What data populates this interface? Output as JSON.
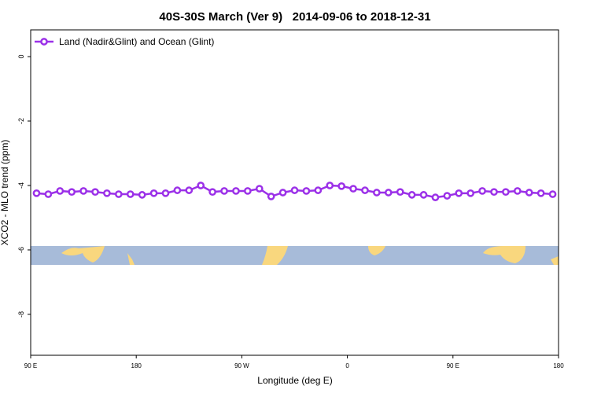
{
  "chart_data": {
    "type": "line",
    "title": "40S-30S March (Ver 9)   2014-09-06 to 2018-12-31",
    "x_label": "Longitude (deg E)",
    "y_label": "XCO2 - MLO trend (ppm)",
    "xlim": [
      90,
      540
    ],
    "ylim": [
      -9.27,
      0.83
    ],
    "xticks": [
      {
        "value": 90,
        "label": "90 E"
      },
      {
        "value": 180,
        "label": "180"
      },
      {
        "value": 270,
        "label": "90 W"
      },
      {
        "value": 360,
        "label": "0"
      },
      {
        "value": 450,
        "label": "90 E"
      },
      {
        "value": 540,
        "label": "180"
      }
    ],
    "yticks": [
      0,
      -2,
      -4,
      -6,
      -8
    ],
    "legend": "top-left",
    "x": [
      95,
      105,
      115,
      125,
      135,
      145,
      155,
      165,
      175,
      185,
      195,
      205,
      215,
      225,
      235,
      245,
      255,
      265,
      275,
      285,
      295,
      305,
      315,
      325,
      335,
      345,
      355,
      365,
      375,
      385,
      395,
      405,
      415,
      425,
      435,
      445,
      455,
      465,
      475,
      485,
      495,
      505,
      515,
      525,
      535
    ],
    "series": [
      {
        "name": "Land (Nadir&Glint) and Ocean (Glint)",
        "color": "#9b30e8",
        "values": [
          -4.24,
          -4.27,
          -4.17,
          -4.2,
          -4.17,
          -4.2,
          -4.24,
          -4.27,
          -4.27,
          -4.29,
          -4.24,
          -4.24,
          -4.15,
          -4.15,
          -4.0,
          -4.2,
          -4.17,
          -4.17,
          -4.17,
          -4.1,
          -4.34,
          -4.22,
          -4.15,
          -4.17,
          -4.15,
          -4.0,
          -4.02,
          -4.1,
          -4.15,
          -4.22,
          -4.22,
          -4.2,
          -4.29,
          -4.29,
          -4.37,
          -4.32,
          -4.24,
          -4.24,
          -4.17,
          -4.2,
          -4.2,
          -4.17,
          -4.22,
          -4.24,
          -4.27
        ]
      }
    ]
  }
}
